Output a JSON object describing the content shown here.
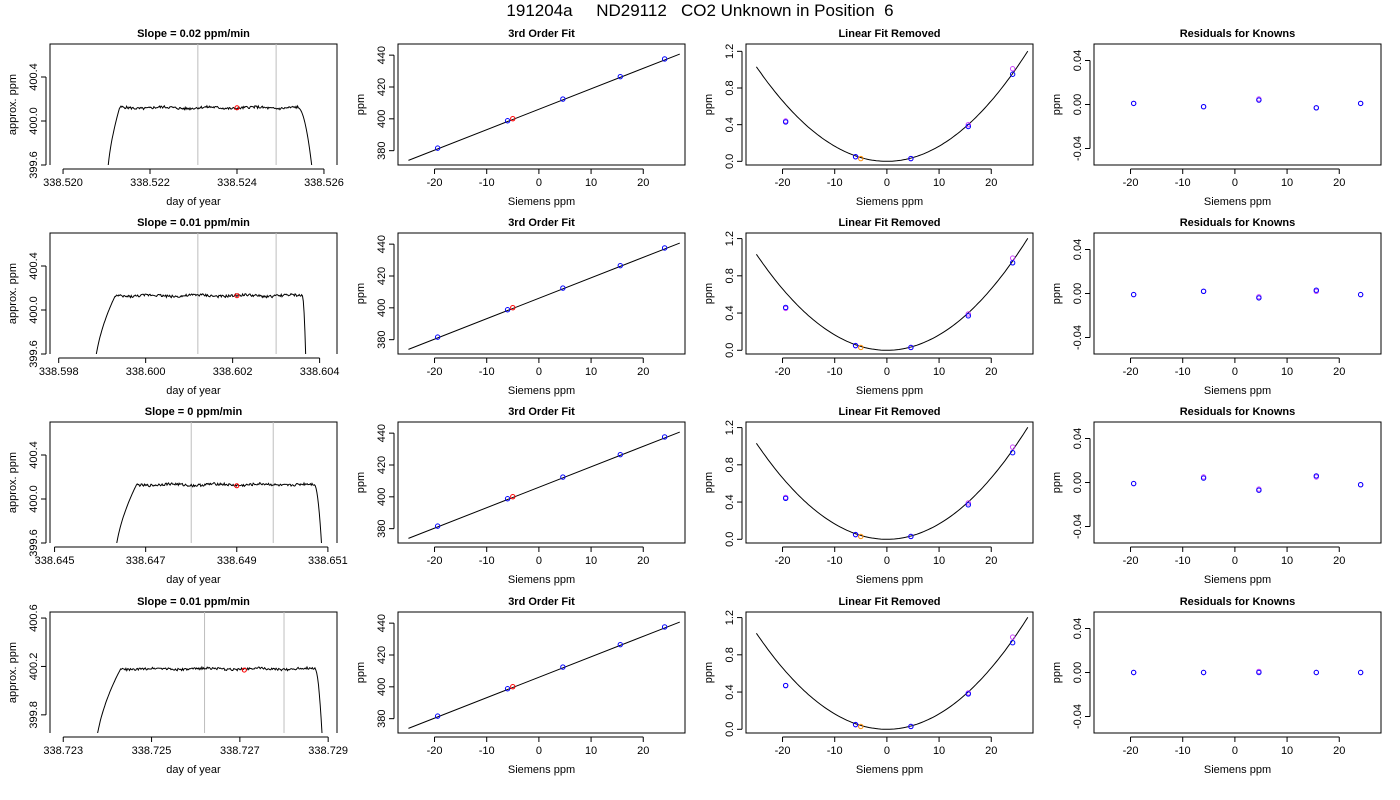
{
  "page": {
    "title": "191204a     ND29112   CO2 Unknown in Position  6"
  },
  "colors": {
    "unknown": "#ff0000",
    "unknown_fit": "#ff8c00",
    "known": "#0000ff",
    "known_alt": "#cc44ff",
    "ref_line": "#bebebe",
    "curve": "#000000"
  },
  "chart_data": [
    {
      "type": "line",
      "row": 0,
      "panel": "raw",
      "title": "Slope =  0.02  ppm/min",
      "xlabel": "day of year",
      "ylabel": "approx. ppm",
      "xlim": [
        338.5197,
        338.5263
      ],
      "ylim": [
        399.6,
        400.7
      ],
      "xticks": [
        338.52,
        338.522,
        338.524,
        338.526
      ],
      "xtick_labels": [
        "338.520",
        "338.522",
        "338.524",
        "338.526"
      ],
      "yticks": [
        399.6,
        400.0,
        400.4
      ],
      "ytick_labels": [
        "399.6",
        "400.0",
        "400.4"
      ],
      "vlines": [
        338.5231,
        338.5249
      ],
      "trace": {
        "start": 338.521,
        "rise_end": 338.5213,
        "fall_start": 338.5254,
        "end": 338.5258,
        "plateau": 400.12,
        "noise": 0.012
      },
      "unknown_point": {
        "x": 338.524,
        "y": 400.12
      }
    },
    {
      "type": "scatter",
      "row": 0,
      "panel": "fit",
      "title": "3rd Order Fit",
      "xlabel": "Siemens ppm",
      "ylabel": "ppm",
      "xlim": [
        -27,
        28
      ],
      "ylim": [
        371,
        447
      ],
      "xticks": [
        -20,
        -10,
        0,
        10,
        20
      ],
      "xtick_labels": [
        "-20",
        "-10",
        "0",
        "10",
        "20"
      ],
      "yticks": [
        380,
        400,
        420,
        440
      ],
      "ytick_labels": [
        "380",
        "400",
        "420",
        "440"
      ],
      "knowns": {
        "x": [
          -19.4,
          -6.0,
          4.6,
          15.6,
          24.1
        ],
        "y": [
          381.6,
          398.8,
          412.4,
          426.5,
          437.6
        ]
      },
      "unknown": {
        "x": [
          -5.0
        ],
        "y": [
          400.1
        ]
      },
      "fit_line": {
        "x": [
          -25,
          27
        ],
        "y": [
          373.9,
          440.7
        ]
      }
    },
    {
      "type": "scatter",
      "row": 0,
      "panel": "linear_removed",
      "title": "Linear Fit Removed",
      "xlabel": "Siemens ppm",
      "ylabel": "ppm",
      "xlim": [
        -27,
        28
      ],
      "ylim": [
        -0.04,
        1.28
      ],
      "xticks": [
        -20,
        -10,
        0,
        10,
        20
      ],
      "xtick_labels": [
        "-20",
        "-10",
        "0",
        "10",
        "20"
      ],
      "yticks": [
        0.0,
        0.4,
        0.8,
        1.2
      ],
      "ytick_labels": [
        "0.0",
        "0.4",
        "0.8",
        "1.2"
      ],
      "knowns": {
        "x": [
          -19.4,
          -6.0,
          4.6,
          15.6,
          24.1
        ],
        "y": [
          0.43,
          0.05,
          0.03,
          0.38,
          0.95
        ]
      },
      "knowns_alt": {
        "x": [
          -19.4,
          -6.0,
          4.6,
          15.6,
          24.1
        ],
        "y": [
          0.44,
          0.05,
          0.03,
          0.4,
          1.01
        ]
      },
      "unknown": {
        "x": [
          -5.0
        ],
        "y": [
          0.03
        ]
      },
      "curve_coef": 0.00165
    },
    {
      "type": "scatter",
      "row": 0,
      "panel": "residuals",
      "title": "Residuals for Knowns",
      "xlabel": "Siemens ppm",
      "ylabel": "ppm",
      "xlim": [
        -27,
        28
      ],
      "ylim": [
        -0.055,
        0.055
      ],
      "xticks": [
        -20,
        -10,
        0,
        10,
        20
      ],
      "xtick_labels": [
        "-20",
        "-10",
        "0",
        "10",
        "20"
      ],
      "yticks": [
        -0.04,
        0.0,
        0.04
      ],
      "ytick_labels": [
        "-0.04",
        "0.00",
        "0.04"
      ],
      "knowns": {
        "x": [
          -19.4,
          -6.0,
          4.6,
          15.6,
          24.1
        ],
        "y": [
          0.001,
          -0.002,
          0.004,
          -0.003,
          0.001
        ]
      },
      "knowns_alt": {
        "x": [
          -19.4,
          -6.0,
          4.6,
          15.6,
          24.1
        ],
        "y": [
          0.001,
          -0.002,
          0.005,
          -0.003,
          0.001
        ]
      }
    },
    {
      "type": "line",
      "row": 1,
      "panel": "raw",
      "title": "Slope =  0.01  ppm/min",
      "xlabel": "day of year",
      "ylabel": "approx. ppm",
      "xlim": [
        338.5978,
        338.6044
      ],
      "ylim": [
        399.6,
        400.7
      ],
      "xticks": [
        338.598,
        338.6,
        338.602,
        338.604
      ],
      "xtick_labels": [
        "338.598",
        "338.600",
        "338.602",
        "338.604"
      ],
      "yticks": [
        399.6,
        400.0,
        400.4
      ],
      "ytick_labels": [
        "399.6",
        "400.0",
        "400.4"
      ],
      "vlines": [
        338.6012,
        338.603
      ],
      "trace": {
        "start": 338.5988,
        "rise_end": 338.5993,
        "fall_start": 338.6036,
        "end": 338.6037,
        "plateau": 400.13,
        "noise": 0.012
      },
      "unknown_point": {
        "x": 338.6021,
        "y": 400.13
      }
    },
    {
      "type": "scatter",
      "row": 1,
      "panel": "fit",
      "title": "3rd Order Fit",
      "xlabel": "Siemens ppm",
      "ylabel": "ppm",
      "xlim": [
        -27,
        28
      ],
      "ylim": [
        371,
        447
      ],
      "xticks": [
        -20,
        -10,
        0,
        10,
        20
      ],
      "xtick_labels": [
        "-20",
        "-10",
        "0",
        "10",
        "20"
      ],
      "yticks": [
        380,
        400,
        420,
        440
      ],
      "ytick_labels": [
        "380",
        "400",
        "420",
        "440"
      ],
      "knowns": {
        "x": [
          -19.4,
          -6.0,
          4.6,
          15.6,
          24.1
        ],
        "y": [
          381.6,
          398.8,
          412.4,
          426.5,
          437.6
        ]
      },
      "unknown": {
        "x": [
          -5.0
        ],
        "y": [
          400.1
        ]
      },
      "fit_line": {
        "x": [
          -25,
          27
        ],
        "y": [
          373.9,
          440.7
        ]
      }
    },
    {
      "type": "scatter",
      "row": 1,
      "panel": "linear_removed",
      "title": "Linear Fit Removed",
      "xlabel": "Siemens ppm",
      "ylabel": "ppm",
      "xlim": [
        -27,
        28
      ],
      "ylim": [
        -0.04,
        1.26
      ],
      "xticks": [
        -20,
        -10,
        0,
        10,
        20
      ],
      "xtick_labels": [
        "-20",
        "-10",
        "0",
        "10",
        "20"
      ],
      "yticks": [
        0.0,
        0.4,
        0.8,
        1.2
      ],
      "ytick_labels": [
        "0.0",
        "0.4",
        "0.8",
        "1.2"
      ],
      "knowns": {
        "x": [
          -19.4,
          -6.0,
          4.6,
          15.6,
          24.1
        ],
        "y": [
          0.46,
          0.05,
          0.03,
          0.37,
          0.94
        ]
      },
      "knowns_alt": {
        "x": [
          -19.4,
          -6.0,
          4.6,
          15.6,
          24.1
        ],
        "y": [
          0.45,
          0.05,
          0.03,
          0.39,
          0.99
        ]
      },
      "unknown": {
        "x": [
          -5.0
        ],
        "y": [
          0.03
        ]
      },
      "curve_coef": 0.00165
    },
    {
      "type": "scatter",
      "row": 1,
      "panel": "residuals",
      "title": "Residuals for Knowns",
      "xlabel": "Siemens ppm",
      "ylabel": "ppm",
      "xlim": [
        -27,
        28
      ],
      "ylim": [
        -0.055,
        0.055
      ],
      "xticks": [
        -20,
        -10,
        0,
        10,
        20
      ],
      "xtick_labels": [
        "-20",
        "-10",
        "0",
        "10",
        "20"
      ],
      "yticks": [
        -0.04,
        0.0,
        0.04
      ],
      "ytick_labels": [
        "-0.04",
        "0.00",
        "0.04"
      ],
      "knowns": {
        "x": [
          -19.4,
          -6.0,
          4.6,
          15.6,
          24.1
        ],
        "y": [
          -0.001,
          0.002,
          -0.004,
          0.003,
          -0.001
        ]
      },
      "knowns_alt": {
        "x": [
          -19.4,
          -6.0,
          4.6,
          15.6,
          24.1
        ],
        "y": [
          -0.001,
          0.002,
          -0.003,
          0.002,
          -0.001
        ]
      }
    },
    {
      "type": "line",
      "row": 2,
      "panel": "raw",
      "title": "Slope =  0  ppm/min",
      "xlabel": "day of year",
      "ylabel": "approx. ppm",
      "xlim": [
        338.6449,
        338.6512
      ],
      "ylim": [
        399.6,
        400.7
      ],
      "xticks": [
        338.645,
        338.647,
        338.649,
        338.651
      ],
      "xtick_labels": [
        "338.645",
        "338.647",
        "338.649",
        "338.651"
      ],
      "yticks": [
        399.6,
        400.0,
        400.4
      ],
      "ytick_labels": [
        "399.6",
        "400.0",
        "400.4"
      ],
      "vlines": [
        338.648,
        338.6498
      ],
      "trace": {
        "start": 338.6463,
        "rise_end": 338.6468,
        "fall_start": 338.6507,
        "end": 338.6509,
        "plateau": 400.13,
        "noise": 0.012
      },
      "unknown_point": {
        "x": 338.649,
        "y": 400.12
      }
    },
    {
      "type": "scatter",
      "row": 2,
      "panel": "fit",
      "title": "3rd Order Fit",
      "xlabel": "Siemens ppm",
      "ylabel": "ppm",
      "xlim": [
        -27,
        28
      ],
      "ylim": [
        371,
        447
      ],
      "xticks": [
        -20,
        -10,
        0,
        10,
        20
      ],
      "xtick_labels": [
        "-20",
        "-10",
        "0",
        "10",
        "20"
      ],
      "yticks": [
        380,
        400,
        420,
        440
      ],
      "ytick_labels": [
        "380",
        "400",
        "420",
        "440"
      ],
      "knowns": {
        "x": [
          -19.4,
          -6.0,
          4.6,
          15.6,
          24.1
        ],
        "y": [
          381.6,
          398.8,
          412.4,
          426.5,
          437.6
        ]
      },
      "unknown": {
        "x": [
          -5.0
        ],
        "y": [
          400.1
        ]
      },
      "fit_line": {
        "x": [
          -25,
          27
        ],
        "y": [
          373.9,
          440.7
        ]
      }
    },
    {
      "type": "scatter",
      "row": 2,
      "panel": "linear_removed",
      "title": "Linear Fit Removed",
      "xlabel": "Siemens ppm",
      "ylabel": "ppm",
      "xlim": [
        -27,
        28
      ],
      "ylim": [
        -0.04,
        1.26
      ],
      "xticks": [
        -20,
        -10,
        0,
        10,
        20
      ],
      "xtick_labels": [
        "-20",
        "-10",
        "0",
        "10",
        "20"
      ],
      "yticks": [
        0.0,
        0.4,
        0.8,
        1.2
      ],
      "ytick_labels": [
        "0.0",
        "0.4",
        "0.8",
        "1.2"
      ],
      "knowns": {
        "x": [
          -19.4,
          -6.0,
          4.6,
          15.6,
          24.1
        ],
        "y": [
          0.44,
          0.05,
          0.03,
          0.37,
          0.93
        ]
      },
      "knowns_alt": {
        "x": [
          -19.4,
          -6.0,
          4.6,
          15.6,
          24.1
        ],
        "y": [
          0.45,
          0.05,
          0.03,
          0.39,
          0.99
        ]
      },
      "unknown": {
        "x": [
          -5.0
        ],
        "y": [
          0.03
        ]
      },
      "curve_coef": 0.00165
    },
    {
      "type": "scatter",
      "row": 2,
      "panel": "residuals",
      "title": "Residuals for Knowns",
      "xlabel": "Siemens ppm",
      "ylabel": "ppm",
      "xlim": [
        -27,
        28
      ],
      "ylim": [
        -0.055,
        0.055
      ],
      "xticks": [
        -20,
        -10,
        0,
        10,
        20
      ],
      "xtick_labels": [
        "-20",
        "-10",
        "0",
        "10",
        "20"
      ],
      "yticks": [
        -0.04,
        0.0,
        0.04
      ],
      "ytick_labels": [
        "-0.04",
        "0.00",
        "0.04"
      ],
      "knowns": {
        "x": [
          -19.4,
          -6.0,
          4.6,
          15.6,
          24.1
        ],
        "y": [
          -0.001,
          0.004,
          -0.007,
          0.006,
          -0.002
        ]
      },
      "knowns_alt": {
        "x": [
          -19.4,
          -6.0,
          4.6,
          15.6,
          24.1
        ],
        "y": [
          -0.001,
          0.005,
          -0.006,
          0.005,
          -0.002
        ]
      }
    },
    {
      "type": "line",
      "row": 3,
      "panel": "raw",
      "title": "Slope =  0.01  ppm/min",
      "xlabel": "day of year",
      "ylabel": "approx. ppm",
      "xlim": [
        338.7227,
        338.7292
      ],
      "ylim": [
        399.65,
        400.65
      ],
      "xticks": [
        338.723,
        338.725,
        338.727,
        338.729
      ],
      "xtick_labels": [
        "338.723",
        "338.725",
        "338.727",
        "338.729"
      ],
      "yticks": [
        399.8,
        400.2,
        400.6
      ],
      "ytick_labels": [
        "399.8",
        "400.2",
        "400.6"
      ],
      "vlines": [
        338.7262,
        338.728
      ],
      "trace": {
        "start": 338.7237,
        "rise_end": 338.7243,
        "fall_start": 338.7287,
        "end": 338.7289,
        "plateau": 400.18,
        "noise": 0.01
      },
      "unknown_point": {
        "x": 338.7271,
        "y": 400.17
      }
    },
    {
      "type": "scatter",
      "row": 3,
      "panel": "fit",
      "title": "3rd Order Fit",
      "xlabel": "Siemens ppm",
      "ylabel": "ppm",
      "xlim": [
        -27,
        28
      ],
      "ylim": [
        371,
        447
      ],
      "xticks": [
        -20,
        -10,
        0,
        10,
        20
      ],
      "xtick_labels": [
        "-20",
        "-10",
        "0",
        "10",
        "20"
      ],
      "yticks": [
        380,
        400,
        420,
        440
      ],
      "ytick_labels": [
        "380",
        "400",
        "420",
        "440"
      ],
      "knowns": {
        "x": [
          -19.4,
          -6.0,
          4.6,
          15.6,
          24.1
        ],
        "y": [
          381.6,
          398.8,
          412.4,
          426.5,
          437.6
        ]
      },
      "unknown": {
        "x": [
          -5.0
        ],
        "y": [
          400.1
        ]
      },
      "fit_line": {
        "x": [
          -25,
          27
        ],
        "y": [
          373.9,
          440.7
        ]
      }
    },
    {
      "type": "scatter",
      "row": 3,
      "panel": "linear_removed",
      "title": "Linear Fit Removed",
      "xlabel": "Siemens ppm",
      "ylabel": "ppm",
      "xlim": [
        -27,
        28
      ],
      "ylim": [
        -0.04,
        1.26
      ],
      "xticks": [
        -20,
        -10,
        0,
        10,
        20
      ],
      "xtick_labels": [
        "-20",
        "-10",
        "0",
        "10",
        "20"
      ],
      "yticks": [
        0.0,
        0.4,
        0.8,
        1.2
      ],
      "ytick_labels": [
        "0.0",
        "0.4",
        "0.8",
        "1.2"
      ],
      "knowns": {
        "x": [
          -19.4,
          -6.0,
          4.6,
          15.6,
          24.1
        ],
        "y": [
          0.47,
          0.05,
          0.03,
          0.38,
          0.93
        ]
      },
      "knowns_alt": {
        "x": [
          -19.4,
          -6.0,
          4.6,
          15.6,
          24.1
        ],
        "y": [
          0.47,
          0.05,
          0.03,
          0.39,
          0.99
        ]
      },
      "unknown": {
        "x": [
          -5.0
        ],
        "y": [
          0.03
        ]
      },
      "curve_coef": 0.00165
    },
    {
      "type": "scatter",
      "row": 3,
      "panel": "residuals",
      "title": "Residuals for Knowns",
      "xlabel": "Siemens ppm",
      "ylabel": "ppm",
      "xlim": [
        -27,
        28
      ],
      "ylim": [
        -0.055,
        0.055
      ],
      "xticks": [
        -20,
        -10,
        0,
        10,
        20
      ],
      "xtick_labels": [
        "-20",
        "-10",
        "0",
        "10",
        "20"
      ],
      "yticks": [
        -0.04,
        0.0,
        0.04
      ],
      "ytick_labels": [
        "-0.04",
        "0.00",
        "0.04"
      ],
      "knowns": {
        "x": [
          -19.4,
          -6.0,
          4.6,
          15.6,
          24.1
        ],
        "y": [
          0.0,
          0.0,
          0.0,
          0.0,
          0.0
        ]
      },
      "knowns_alt": {
        "x": [
          -19.4,
          -6.0,
          4.6,
          15.6,
          24.1
        ],
        "y": [
          0.0,
          0.0,
          0.001,
          0.0,
          0.0
        ]
      }
    }
  ]
}
